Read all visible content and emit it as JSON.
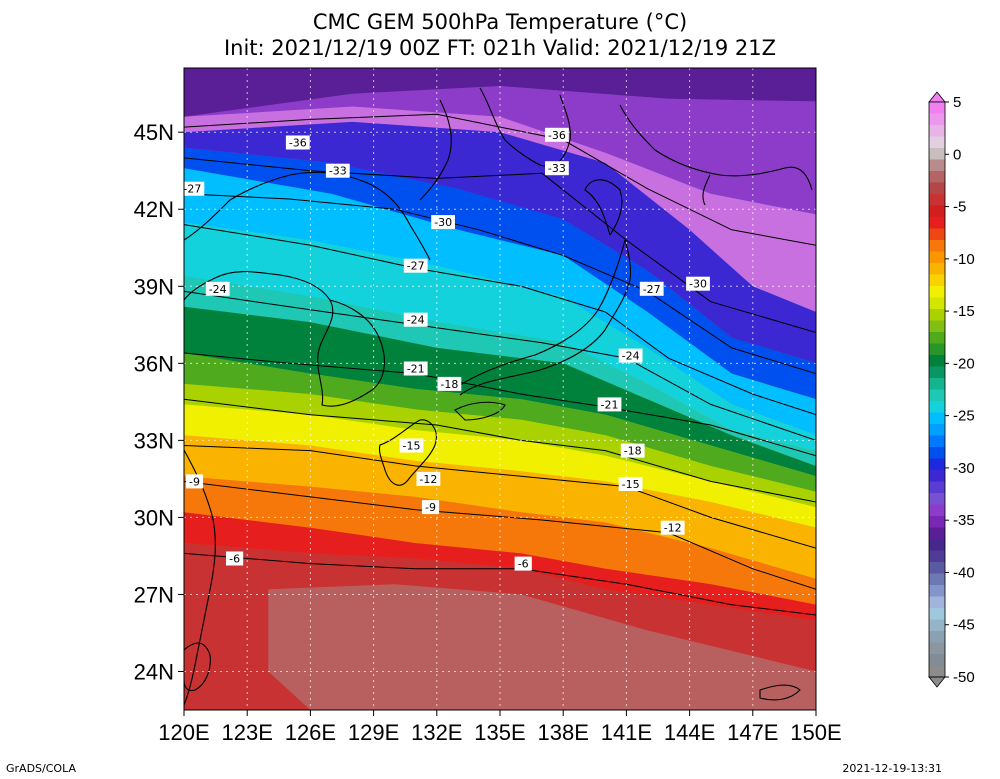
{
  "title_line1": "CMC GEM 500hPa Temperature (°C)",
  "title_line2": "Init: 2021/12/19 00Z  FT: 021h  Valid: 2021/12/19 21Z",
  "footer_left": "GrADS/COLA",
  "footer_right": "2021-12-19-13:31",
  "lat_labels": [
    "45N",
    "42N",
    "39N",
    "36N",
    "33N",
    "30N",
    "27N",
    "24N"
  ],
  "lon_labels": [
    "120E",
    "123E",
    "126E",
    "129E",
    "132E",
    "135E",
    "138E",
    "141E",
    "144E",
    "147E",
    "150E"
  ],
  "colorbar": {
    "labels": [
      "5",
      "0",
      "-5",
      "-10",
      "-15",
      "-20",
      "-25",
      "-30",
      "-35",
      "-40",
      "-45",
      "-50"
    ],
    "colors": [
      "#f080f0",
      "#ec98ec",
      "#e8b4e8",
      "#e2d0e2",
      "#c8bebe",
      "#b88c8c",
      "#b46464",
      "#b44646",
      "#c83232",
      "#d21e1e",
      "#e61e1e",
      "#f04614",
      "#f6780a",
      "#fa9600",
      "#fab400",
      "#fad200",
      "#f0f000",
      "#d2e600",
      "#aad200",
      "#82be14",
      "#50aa1e",
      "#289628",
      "#00823c",
      "#0a9664",
      "#14b48c",
      "#1ec8b4",
      "#14d2dc",
      "#00beff",
      "#00a0ff",
      "#0078ff",
      "#0050f0",
      "#1e28dc",
      "#3c28d2",
      "#5a3cd2",
      "#7850d2",
      "#8c3cc8",
      "#7828b4",
      "#5a1e96",
      "#46288c",
      "#503c96",
      "#5a5aa0",
      "#6e78b4",
      "#8296c8",
      "#a0b4dc",
      "#a0c8dc",
      "#96b4c8",
      "#8ca0b4",
      "#8c96a0",
      "#828c96",
      "#8c8c8c"
    ]
  },
  "contour_labels": [
    {
      "text": "-36",
      "lon": 125.4,
      "lat": 44.6
    },
    {
      "text": "-36",
      "lon": 137.7,
      "lat": 44.9
    },
    {
      "text": "-33",
      "lon": 127.3,
      "lat": 43.5
    },
    {
      "text": "-33",
      "lon": 137.7,
      "lat": 43.6
    },
    {
      "text": "-27",
      "lon": 120.4,
      "lat": 42.8
    },
    {
      "text": "-30",
      "lon": 132.3,
      "lat": 41.5
    },
    {
      "text": "-27",
      "lon": 131.0,
      "lat": 39.8
    },
    {
      "text": "-30",
      "lon": 144.4,
      "lat": 39.1
    },
    {
      "text": "-27",
      "lon": 142.2,
      "lat": 38.9
    },
    {
      "text": "-24",
      "lon": 121.6,
      "lat": 38.9
    },
    {
      "text": "-24",
      "lon": 131.0,
      "lat": 37.7
    },
    {
      "text": "-24",
      "lon": 141.2,
      "lat": 36.3
    },
    {
      "text": "-21",
      "lon": 131.0,
      "lat": 35.8
    },
    {
      "text": "-18",
      "lon": 132.6,
      "lat": 35.2
    },
    {
      "text": "-21",
      "lon": 140.2,
      "lat": 34.4
    },
    {
      "text": "-15",
      "lon": 130.8,
      "lat": 32.8
    },
    {
      "text": "-18",
      "lon": 141.3,
      "lat": 32.6
    },
    {
      "text": "-12",
      "lon": 131.6,
      "lat": 31.5
    },
    {
      "text": "-15",
      "lon": 141.2,
      "lat": 31.3
    },
    {
      "text": "-9",
      "lon": 120.5,
      "lat": 31.4
    },
    {
      "text": "-9",
      "lon": 131.7,
      "lat": 30.4
    },
    {
      "text": "-12",
      "lon": 143.2,
      "lat": 29.6
    },
    {
      "text": "-6",
      "lon": 122.4,
      "lat": 28.4
    },
    {
      "text": "-6",
      "lon": 136.1,
      "lat": 28.2
    }
  ]
}
